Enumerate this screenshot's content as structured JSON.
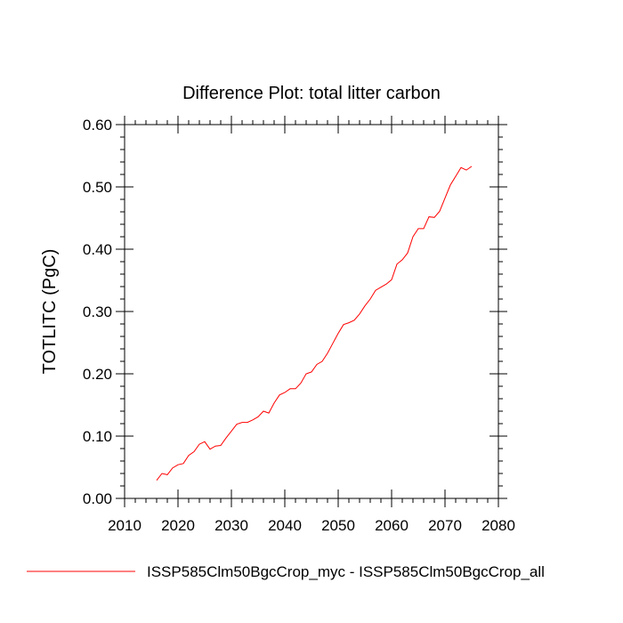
{
  "chart_data": {
    "type": "line",
    "title": "Difference Plot: total litter carbon",
    "ylabel": "TOTLITC  (PgC)",
    "xlabel": "",
    "xlim": [
      2010,
      2080
    ],
    "ylim": [
      0,
      0.6
    ],
    "x_ticks": [
      2010,
      2020,
      2030,
      2040,
      2050,
      2060,
      2070,
      2080
    ],
    "x_tick_labels": [
      "2010",
      "2020",
      "2030",
      "2040",
      "2050",
      "2060",
      "2070",
      "2080"
    ],
    "y_ticks": [
      0,
      0.1,
      0.2,
      0.3,
      0.4,
      0.5,
      0.6
    ],
    "y_tick_labels": [
      "0.00",
      "0.10",
      "0.20",
      "0.30",
      "0.40",
      "0.50",
      "0.60"
    ],
    "legend_position": "bottom",
    "series": [
      {
        "name": "ISSP585Clm50BgcCrop_myc - ISSP585Clm50BgcCrop_all",
        "color": "#ff0000",
        "x": [
          2016,
          2017,
          2018,
          2019,
          2020,
          2021,
          2022,
          2023,
          2024,
          2025,
          2026,
          2027,
          2028,
          2029,
          2030,
          2031,
          2032,
          2033,
          2034,
          2035,
          2036,
          2037,
          2038,
          2039,
          2040,
          2041,
          2042,
          2043,
          2044,
          2045,
          2046,
          2047,
          2048,
          2049,
          2050,
          2051,
          2052,
          2053,
          2054,
          2055,
          2056,
          2057,
          2058,
          2059,
          2060,
          2061,
          2062,
          2063,
          2064,
          2065,
          2066,
          2067,
          2068,
          2069,
          2070,
          2071,
          2072,
          2073,
          2074,
          2075
        ],
        "y": [
          0.029,
          0.04,
          0.038,
          0.049,
          0.054,
          0.056,
          0.069,
          0.075,
          0.087,
          0.091,
          0.079,
          0.084,
          0.085,
          0.097,
          0.108,
          0.119,
          0.122,
          0.122,
          0.126,
          0.131,
          0.14,
          0.137,
          0.153,
          0.166,
          0.17,
          0.176,
          0.176,
          0.185,
          0.2,
          0.203,
          0.215,
          0.22,
          0.233,
          0.249,
          0.265,
          0.279,
          0.282,
          0.286,
          0.296,
          0.309,
          0.32,
          0.334,
          0.339,
          0.344,
          0.351,
          0.376,
          0.383,
          0.394,
          0.42,
          0.433,
          0.433,
          0.452,
          0.451,
          0.461,
          0.482,
          0.503,
          0.517,
          0.531,
          0.527,
          0.533
        ]
      }
    ]
  }
}
